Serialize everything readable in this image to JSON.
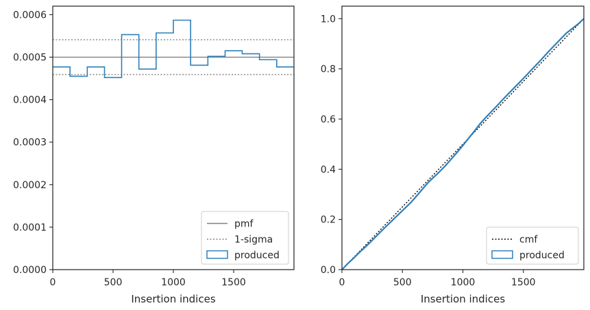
{
  "chart_data": [
    {
      "type": "step",
      "xlabel": "Insertion indices",
      "ylabel": "",
      "xlim": [
        0,
        2000
      ],
      "ylim": [
        0,
        0.00062
      ],
      "xticks": [
        0,
        500,
        1000,
        1500
      ],
      "yticks": [
        0,
        0.0001,
        0.0002,
        0.0003,
        0.0004,
        0.0005,
        0.0006
      ],
      "ytick_labels": [
        "0.0000",
        "0.0001",
        "0.0002",
        "0.0003",
        "0.0004",
        "0.0005",
        "0.0006"
      ],
      "legend_position": "lower-right",
      "series": [
        {
          "name": "pmf",
          "kind": "hline",
          "y": 0.0005,
          "color": "#808080",
          "dash": "solid"
        },
        {
          "name": "1-sigma",
          "kind": "hlines",
          "y": [
            0.000541,
            0.000459
          ],
          "color": "#808080",
          "dash": "dotted"
        },
        {
          "name": "produced",
          "kind": "step",
          "color": "#2e7fb8",
          "bin_edges": [
            0,
            143,
            286,
            429,
            571,
            714,
            857,
            1000,
            1143,
            1286,
            1429,
            1571,
            1714,
            1857,
            2000
          ],
          "values": [
            0.000477,
            0.000455,
            0.000477,
            0.000452,
            0.000553,
            0.000472,
            0.000557,
            0.000587,
            0.000481,
            0.000502,
            0.000515,
            0.000508,
            0.000494,
            0.000477
          ]
        }
      ]
    },
    {
      "type": "line",
      "xlabel": "Insertion indices",
      "ylabel": "",
      "xlim": [
        0,
        2000
      ],
      "ylim": [
        0,
        1.05
      ],
      "xticks": [
        0,
        500,
        1000,
        1500
      ],
      "yticks": [
        0.0,
        0.2,
        0.4,
        0.6,
        0.8,
        1.0
      ],
      "ytick_labels": [
        "0.0",
        "0.2",
        "0.4",
        "0.6",
        "0.8",
        "1.0"
      ],
      "legend_position": "lower-right",
      "series": [
        {
          "name": "cmf",
          "kind": "line",
          "color": "#000000",
          "dash": "dotted",
          "x": [
            0,
            2000
          ],
          "y": [
            0,
            1.0
          ]
        },
        {
          "name": "produced",
          "kind": "line",
          "color": "#2e7fb8",
          "x": [
            0,
            50,
            100,
            143,
            200,
            286,
            350,
            429,
            500,
            571,
            650,
            714,
            800,
            857,
            950,
            1000,
            1100,
            1143,
            1200,
            1286,
            1350,
            1429,
            1500,
            1571,
            1650,
            1714,
            1800,
            1857,
            1950,
            2000
          ],
          "y": [
            0,
            0.025,
            0.047,
            0.068,
            0.093,
            0.134,
            0.165,
            0.202,
            0.235,
            0.268,
            0.312,
            0.348,
            0.387,
            0.415,
            0.466,
            0.495,
            0.555,
            0.582,
            0.612,
            0.655,
            0.688,
            0.727,
            0.762,
            0.798,
            0.838,
            0.872,
            0.915,
            0.943,
            0.978,
            1.0
          ]
        }
      ]
    }
  ]
}
